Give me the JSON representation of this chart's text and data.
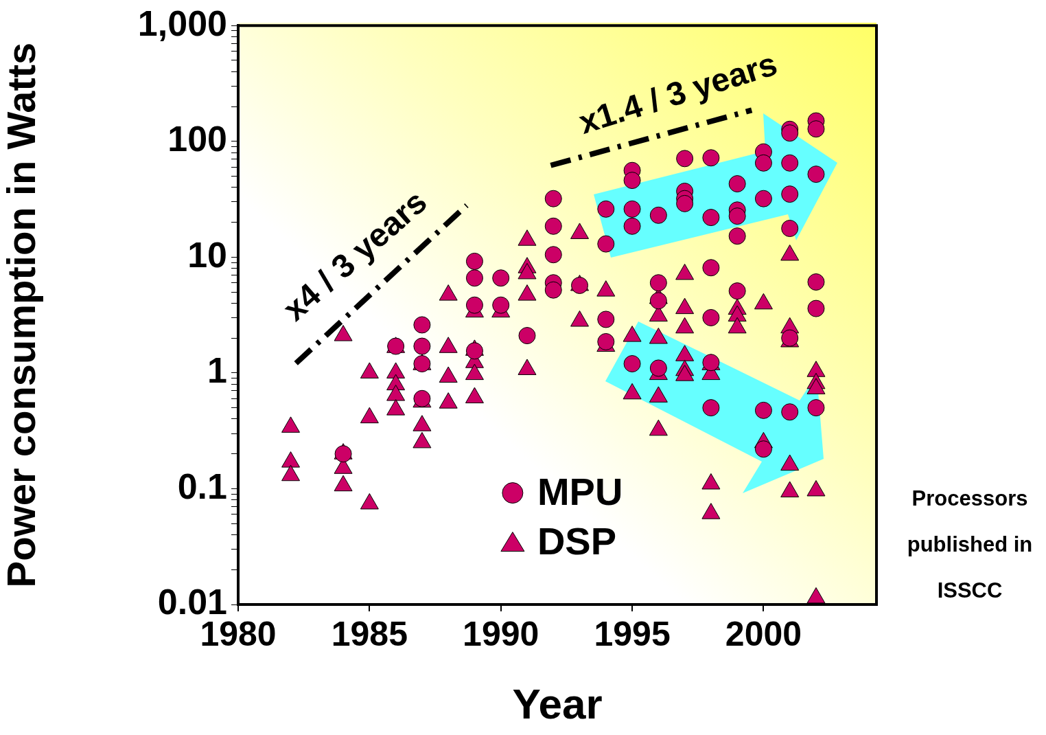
{
  "chart_data": {
    "type": "scatter",
    "xlabel": "Year",
    "ylabel": "Power consumption in Watts",
    "xlim": [
      1980,
      2004.3
    ],
    "xticks": [
      1980,
      1985,
      1990,
      1995,
      2000
    ],
    "ylim": [
      0.01,
      1000
    ],
    "log": "y",
    "yticks": [
      {
        "value": 0.01,
        "label": "0.01"
      },
      {
        "value": 0.02,
        "label": null
      },
      {
        "value": 0.03,
        "label": null
      },
      {
        "value": 0.04,
        "label": null
      },
      {
        "value": 0.05,
        "label": null
      },
      {
        "value": 0.06,
        "label": null
      },
      {
        "value": 0.07,
        "label": null
      },
      {
        "value": 0.08,
        "label": null
      },
      {
        "value": 0.09,
        "label": null
      },
      {
        "value": 0.1,
        "label": "0.1"
      },
      {
        "value": 0.2,
        "label": null
      },
      {
        "value": 0.3,
        "label": null
      },
      {
        "value": 0.4,
        "label": null
      },
      {
        "value": 0.5,
        "label": null
      },
      {
        "value": 0.6,
        "label": null
      },
      {
        "value": 0.7,
        "label": null
      },
      {
        "value": 0.8,
        "label": null
      },
      {
        "value": 0.9,
        "label": null
      },
      {
        "value": 1,
        "label": "1"
      },
      {
        "value": 2,
        "label": null
      },
      {
        "value": 3,
        "label": null
      },
      {
        "value": 4,
        "label": null
      },
      {
        "value": 5,
        "label": null
      },
      {
        "value": 6,
        "label": null
      },
      {
        "value": 7,
        "label": null
      },
      {
        "value": 8,
        "label": null
      },
      {
        "value": 9,
        "label": null
      },
      {
        "value": 10,
        "label": "10"
      },
      {
        "value": 20,
        "label": null
      },
      {
        "value": 30,
        "label": null
      },
      {
        "value": 40,
        "label": null
      },
      {
        "value": 50,
        "label": null
      },
      {
        "value": 60,
        "label": null
      },
      {
        "value": 70,
        "label": null
      },
      {
        "value": 80,
        "label": null
      },
      {
        "value": 90,
        "label": null
      },
      {
        "value": 100,
        "label": "100"
      },
      {
        "value": 200,
        "label": null
      },
      {
        "value": 300,
        "label": null
      },
      {
        "value": 400,
        "label": null
      },
      {
        "value": 500,
        "label": null
      },
      {
        "value": 600,
        "label": null
      },
      {
        "value": 700,
        "label": null
      },
      {
        "value": 800,
        "label": null
      },
      {
        "value": 900,
        "label": null
      },
      {
        "value": 1000,
        "label": "1,000"
      }
    ],
    "grid": false,
    "legend": "bottom",
    "annotations": [
      "x4 / 3 years",
      "x1.4 / 3 years",
      "Processors published in ISSCC"
    ],
    "series": [
      {
        "name": "MPU",
        "marker": "circle",
        "color": "#cc0066",
        "x": [
          1984,
          1986,
          1987,
          1987,
          1987,
          1987,
          1989,
          1989,
          1989,
          1989,
          1990,
          1990,
          1991,
          1992,
          1992,
          1992,
          1992,
          1992,
          1993,
          1994,
          1994,
          1994,
          1994,
          1995,
          1995,
          1995,
          1995,
          1995,
          1996,
          1996,
          1996,
          1996,
          1997,
          1997,
          1997,
          1997,
          1998,
          1998,
          1998,
          1998,
          1998,
          1998,
          1999,
          1999,
          1999,
          1999,
          1999,
          2000,
          2000,
          2000,
          2000,
          2000,
          2001,
          2001,
          2001,
          2001,
          2001,
          2001,
          2001,
          2002,
          2002,
          2002,
          2002,
          2002,
          2002
        ],
        "values": [
          0.2,
          1.7,
          2.6,
          1.7,
          1.2,
          0.6,
          9.2,
          6.6,
          3.85,
          1.55,
          6.6,
          3.85,
          2.1,
          32,
          18.5,
          10.5,
          6,
          5.2,
          5.7,
          26,
          13,
          2.9,
          1.86,
          56,
          46,
          26,
          18.5,
          1.2,
          23,
          6,
          4.2,
          1.1,
          71,
          37,
          32,
          29,
          72,
          22,
          8.1,
          3,
          1.23,
          0.5,
          43,
          25.5,
          22.6,
          15.2,
          5.1,
          81,
          65,
          32,
          0.475,
          0.22,
          127,
          118,
          65,
          35,
          17.7,
          2,
          0.46,
          150,
          128,
          52,
          6.1,
          3.6,
          0.5
        ]
      },
      {
        "name": "DSP",
        "marker": "triangle",
        "color": "#cc0066",
        "x": [
          1982,
          1982,
          1982,
          1984,
          1984,
          1984,
          1984,
          1985,
          1985,
          1985,
          1986,
          1986,
          1986,
          1986,
          1986,
          1987,
          1987,
          1987,
          1987,
          1988,
          1988,
          1988,
          1988,
          1989,
          1989,
          1989,
          1989,
          1989,
          1990,
          1991,
          1991,
          1991,
          1991,
          1991,
          1993,
          1993,
          1993,
          1994,
          1994,
          1995,
          1995,
          1996,
          1996,
          1996,
          1996,
          1996,
          1996,
          1997,
          1997,
          1997,
          1997,
          1997,
          1997,
          1998,
          1998,
          1998,
          1998,
          1999,
          1999,
          1999,
          2000,
          2000,
          2001,
          2001,
          2001,
          2001,
          2001,
          2002,
          2002,
          2002,
          2002,
          2002
        ],
        "values": [
          0.34,
          0.17,
          0.13,
          2.1,
          0.2,
          0.15,
          0.106,
          1.0,
          0.41,
          0.074,
          1.66,
          1.0,
          0.79,
          0.64,
          0.48,
          1.18,
          0.56,
          0.35,
          0.25,
          4.7,
          1.66,
          0.92,
          0.55,
          3.36,
          1.57,
          1.23,
          0.97,
          0.61,
          3.36,
          14,
          8.1,
          7.2,
          4.7,
          1.07,
          16,
          5.7,
          2.8,
          5.1,
          1.7,
          2.07,
          0.66,
          4.4,
          3.1,
          1.99,
          0.97,
          0.62,
          0.32,
          7.1,
          3.6,
          2.45,
          1.41,
          1.05,
          0.95,
          1.18,
          0.97,
          0.11,
          0.061,
          3.55,
          3.1,
          2.45,
          3.95,
          0.25,
          10.4,
          2.45,
          1.86,
          0.16,
          0.094,
          1.03,
          0.81,
          0.73,
          0.096,
          0.0114
        ]
      },
      {
        "type": "line",
        "marker": "none",
        "line_style": "dashed",
        "color": "#000000",
        "x": [
          1982.2,
          1988.7
        ],
        "values": [
          1.21,
          28
        ]
      },
      {
        "type": "line",
        "marker": "none",
        "line_style": "dashed",
        "color": "#000000",
        "x": [
          1991.9,
          1999.55
        ],
        "values": [
          62,
          186
        ]
      }
    ]
  }
}
